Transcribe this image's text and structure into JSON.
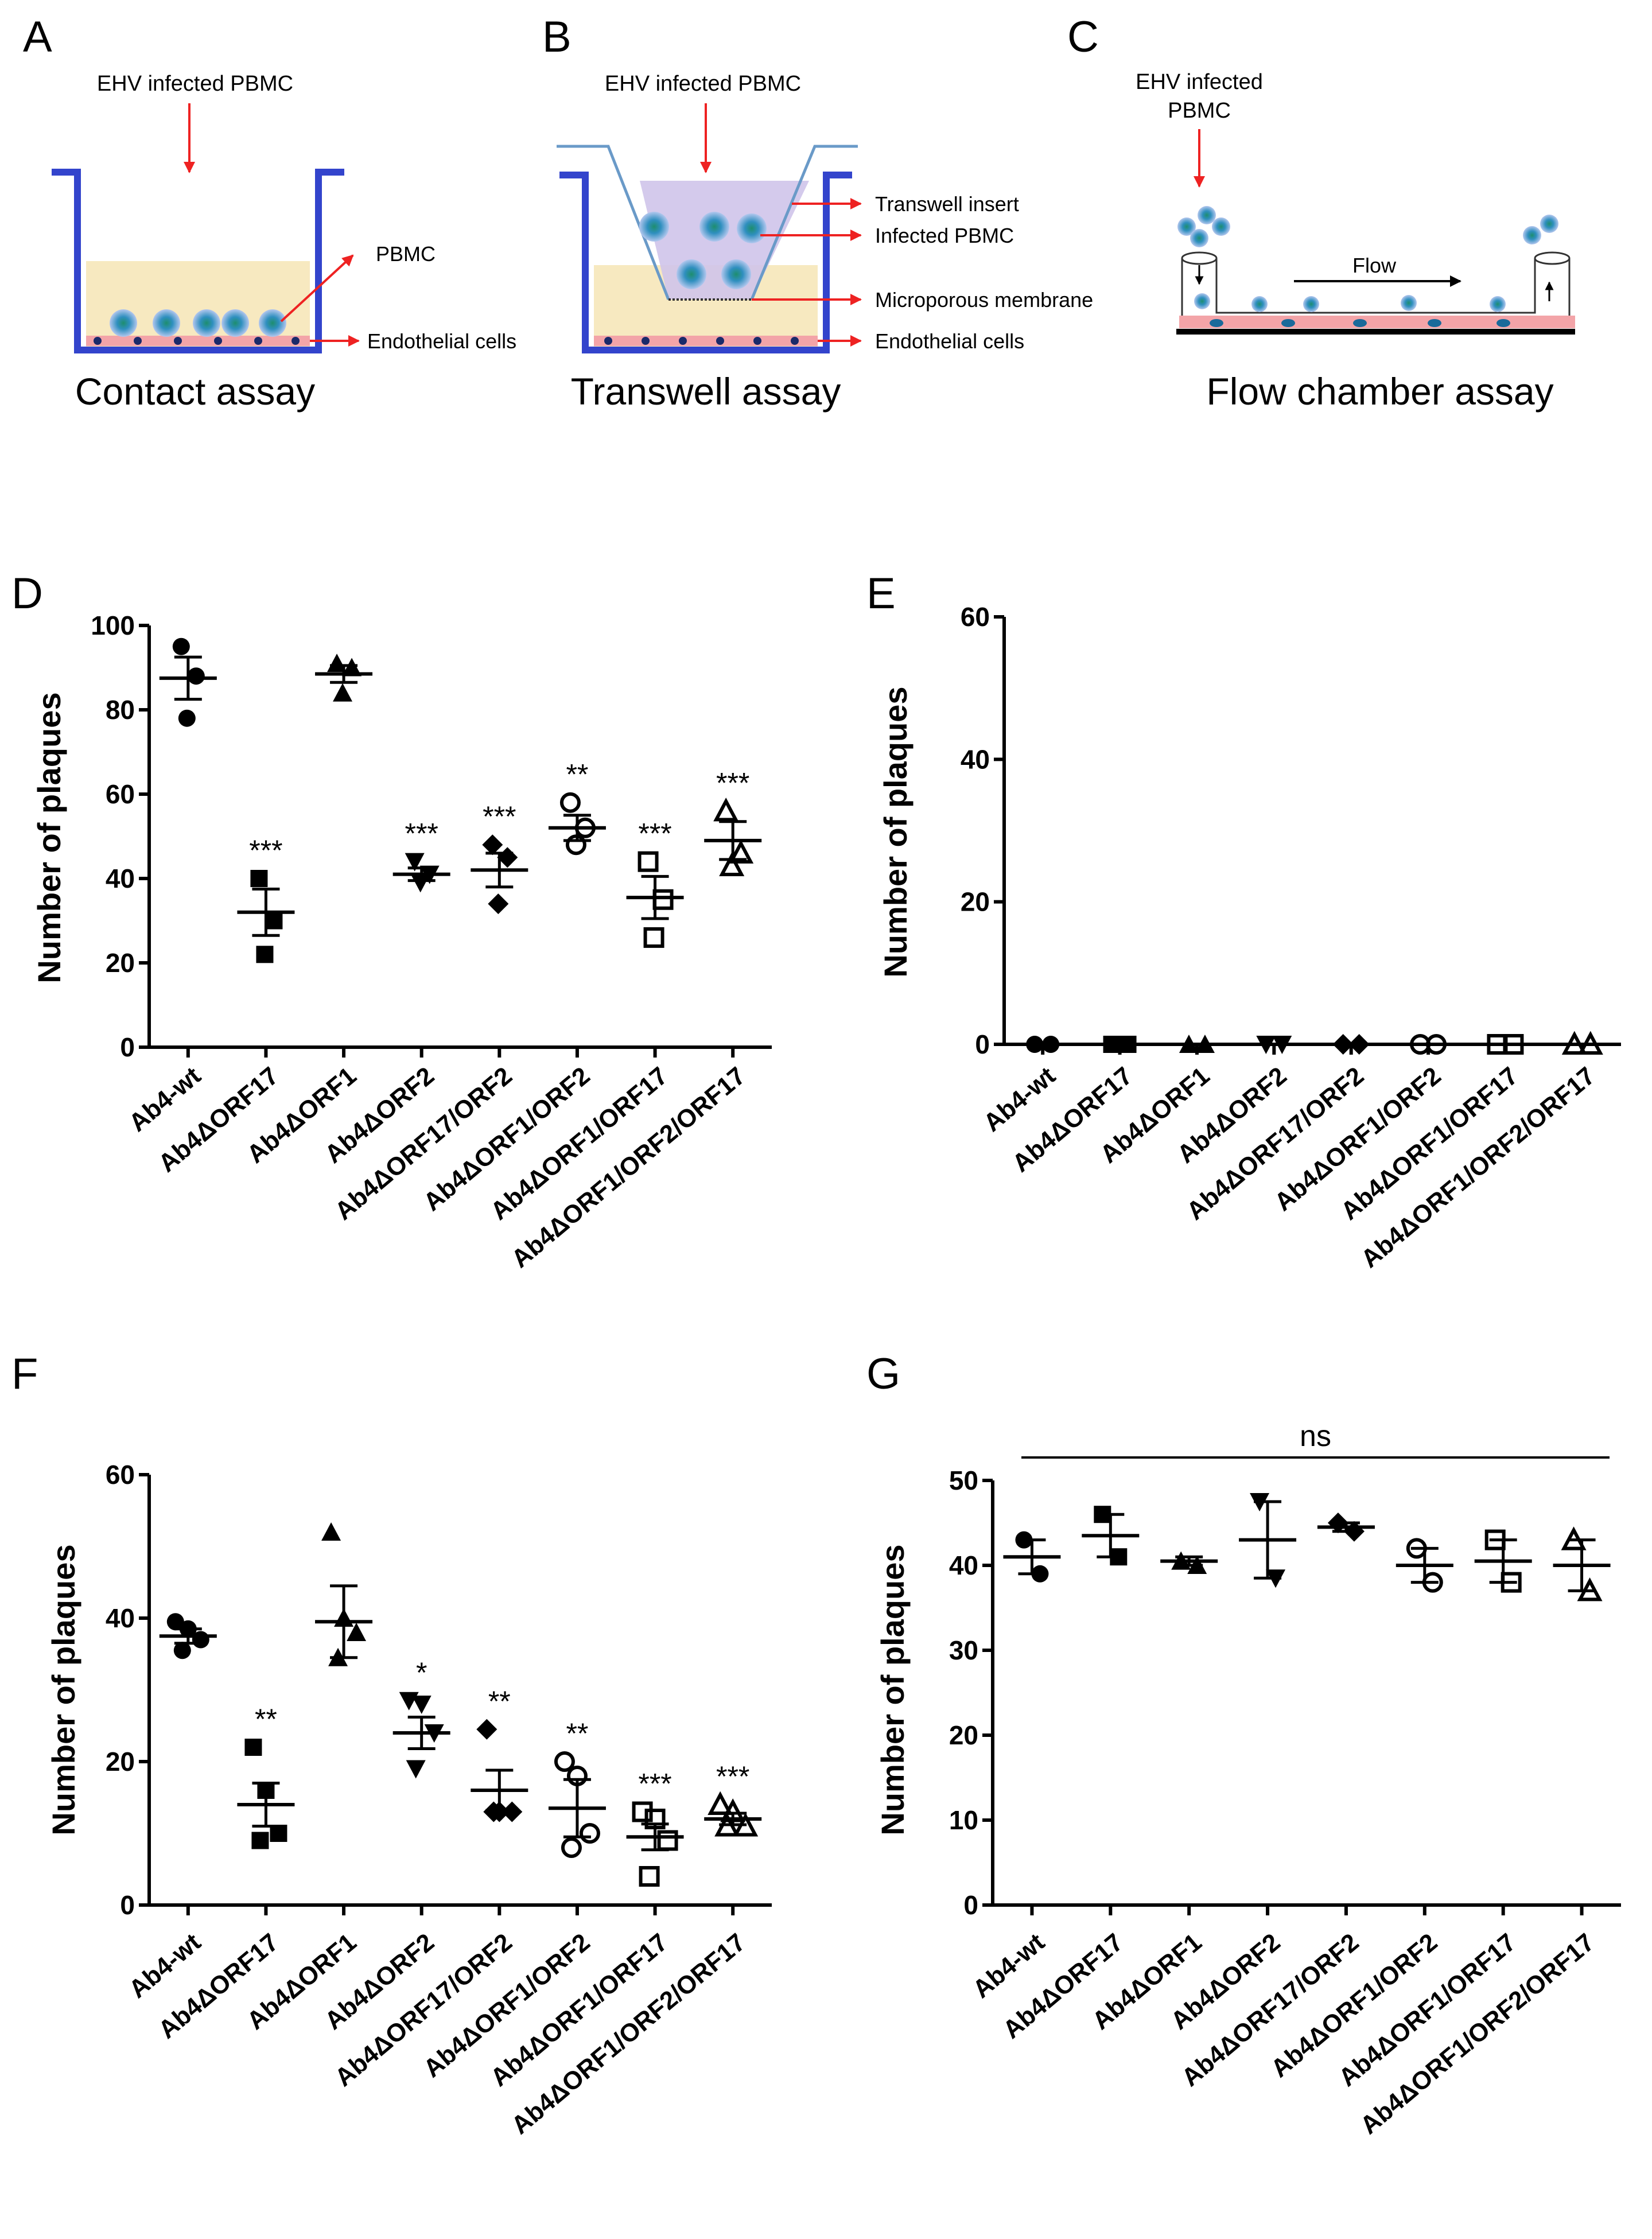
{
  "colors": {
    "well": "#3344cc",
    "arrow": "#ee2222",
    "medium": "#f7e9c0",
    "insert": "#cfc4ea",
    "insert_line": "#6a9ac8",
    "endothelial": "#f3a4a8",
    "nucleus": "#1a2a6a",
    "cell_outer": "#9fb6e6",
    "cell_inner": "#1e8e6e"
  },
  "schematics": {
    "A": {
      "letter": "A",
      "ehv_label": "EHV infected PBMC",
      "callouts": [
        "PBMC",
        "Endothelial cells"
      ],
      "assay_label": "Contact assay"
    },
    "B": {
      "letter": "B",
      "ehv_label": "EHV infected PBMC",
      "callouts": [
        "Transwell insert",
        "Infected PBMC",
        "Microporous membrane",
        "Endothelial cells"
      ],
      "assay_label": "Transwell assay"
    },
    "C": {
      "letter": "C",
      "ehv_label": [
        "EHV infected",
        "PBMC"
      ],
      "flow_label": "Flow",
      "assay_label": "Flow chamber assay"
    }
  },
  "chart_data": [
    {
      "panel": "D",
      "type": "scatter",
      "ylabel": "Number of plaques",
      "ylim": [
        0,
        100
      ],
      "yticks": [
        0,
        20,
        40,
        60,
        80,
        100
      ],
      "categories": [
        "Ab4-wt",
        "Ab4ΔORF17",
        "Ab4ΔORF1",
        "Ab4ΔORF2",
        "Ab4ΔORF17/ORF2",
        "Ab4ΔORF1/ORF2",
        "Ab4ΔORF1/ORF17",
        "Ab4ΔORF1/ORF2/ORF17"
      ],
      "markers": [
        "filled-circle",
        "filled-square",
        "filled-triangle-up",
        "filled-triangle-down",
        "filled-diamond",
        "open-circle",
        "open-square",
        "open-triangle-up"
      ],
      "points": [
        [
          95,
          88,
          78
        ],
        [
          40,
          30,
          22
        ],
        [
          91,
          90,
          84
        ],
        [
          44,
          41,
          39
        ],
        [
          48,
          45,
          34
        ],
        [
          58,
          52,
          48
        ],
        [
          44,
          35,
          26
        ],
        [
          56,
          46,
          43
        ]
      ],
      "means": [
        87.5,
        32,
        88.5,
        41,
        42,
        52,
        35.5,
        49
      ],
      "sems": [
        5,
        5.5,
        2,
        1.5,
        4,
        3,
        5,
        4.5
      ],
      "significance": [
        "",
        "***",
        "",
        "***",
        "***",
        "**",
        "***",
        "***"
      ]
    },
    {
      "panel": "E",
      "type": "scatter",
      "ylabel": "Number of plaques",
      "ylim": [
        0,
        60
      ],
      "yticks": [
        0,
        20,
        40,
        60
      ],
      "categories": [
        "Ab4-wt",
        "Ab4ΔORF17",
        "Ab4ΔORF1",
        "Ab4ΔORF2",
        "Ab4ΔORF17/ORF2",
        "Ab4ΔORF1/ORF2",
        "Ab4ΔORF1/ORF17",
        "Ab4ΔORF1/ORF2/ORF17"
      ],
      "markers": [
        "filled-circle",
        "filled-square",
        "filled-triangle-up",
        "filled-triangle-down",
        "filled-diamond",
        "open-circle",
        "open-square",
        "open-triangle-up"
      ],
      "points": [
        [
          0,
          0
        ],
        [
          0,
          0
        ],
        [
          0,
          0
        ],
        [
          0,
          0
        ],
        [
          0,
          0
        ],
        [
          0,
          0
        ],
        [
          0,
          0
        ],
        [
          0,
          0
        ]
      ],
      "means": [
        0,
        0,
        0,
        0,
        0,
        0,
        0,
        0
      ],
      "sems": [
        0,
        0,
        0,
        0,
        0,
        0,
        0,
        0
      ],
      "significance": [
        "",
        "",
        "",
        "",
        "",
        "",
        "",
        ""
      ]
    },
    {
      "panel": "F",
      "type": "scatter",
      "ylabel": "Number of plaques",
      "ylim": [
        0,
        60
      ],
      "yticks": [
        0,
        20,
        40,
        60
      ],
      "categories": [
        "Ab4-wt",
        "Ab4ΔORF17",
        "Ab4ΔORF1",
        "Ab4ΔORF2",
        "Ab4ΔORF17/ORF2",
        "Ab4ΔORF1/ORF2",
        "Ab4ΔORF1/ORF17",
        "Ab4ΔORF1/ORF2/ORF17"
      ],
      "markers": [
        "filled-circle",
        "filled-square",
        "filled-triangle-up",
        "filled-triangle-down",
        "filled-diamond",
        "open-circle",
        "open-square",
        "open-triangle-up"
      ],
      "points": [
        [
          39.5,
          38.5,
          37,
          35.5
        ],
        [
          22,
          16,
          10,
          9
        ],
        [
          52,
          40,
          38,
          34.5
        ],
        [
          28.5,
          28,
          24,
          19
        ],
        [
          24.5,
          13,
          13,
          13
        ],
        [
          20,
          18,
          10,
          8
        ],
        [
          13,
          12,
          9,
          4
        ],
        [
          14,
          13,
          11,
          11
        ]
      ],
      "means": [
        37.5,
        14,
        39.5,
        24,
        16,
        13.5,
        9.5,
        12
      ],
      "sems": [
        1,
        3,
        5,
        2.2,
        2.8,
        4,
        1.8,
        0.8
      ],
      "significance": [
        "",
        "**",
        "",
        "*",
        "**",
        "**",
        "***",
        "***"
      ]
    },
    {
      "panel": "G",
      "type": "scatter",
      "ylabel": "Number of plaques",
      "ylim": [
        0,
        50
      ],
      "yticks": [
        0,
        10,
        20,
        30,
        40,
        50
      ],
      "categories": [
        "Ab4-wt",
        "Ab4ΔORF17",
        "Ab4ΔORF1",
        "Ab4ΔORF2",
        "Ab4ΔORF17/ORF2",
        "Ab4ΔORF1/ORF2",
        "Ab4ΔORF1/ORF17",
        "Ab4ΔORF1/ORF2/ORF17"
      ],
      "markers": [
        "filled-circle",
        "filled-square",
        "filled-triangle-up",
        "filled-triangle-down",
        "filled-diamond",
        "open-circle",
        "open-square",
        "open-triangle-up"
      ],
      "points": [
        [
          43,
          39
        ],
        [
          46,
          41
        ],
        [
          40.5,
          40
        ],
        [
          47.5,
          38.5
        ],
        [
          45,
          44
        ],
        [
          42,
          38
        ],
        [
          43,
          38
        ],
        [
          43,
          37
        ]
      ],
      "means": [
        41,
        43.5,
        40.5,
        43,
        44.5,
        40,
        40.5,
        40
      ],
      "sems": [
        2,
        2.5,
        0.5,
        4.5,
        0.5,
        2,
        2.5,
        3
      ],
      "significance": [
        "",
        "",
        "",
        "",
        "",
        "",
        "",
        ""
      ],
      "overall_annotation": "ns"
    }
  ]
}
